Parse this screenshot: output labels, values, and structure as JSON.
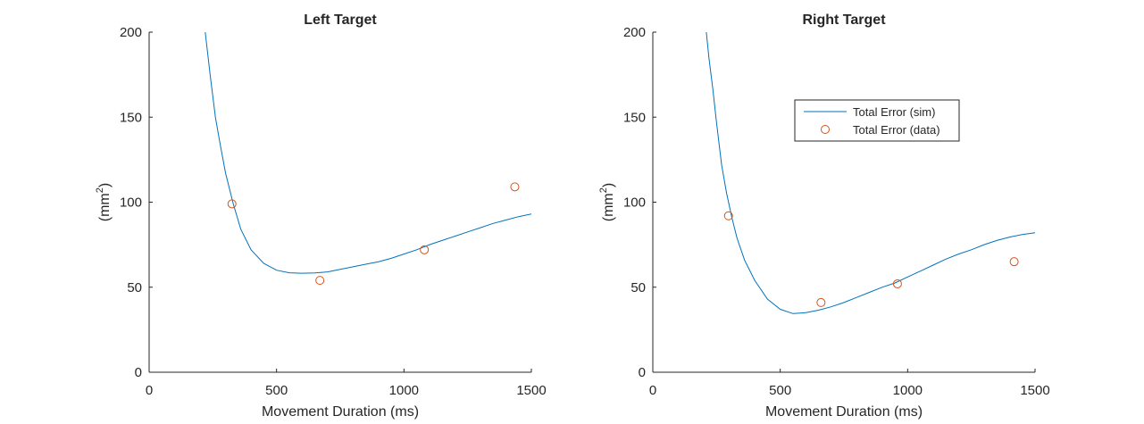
{
  "chart_data": [
    {
      "type": "line",
      "title": "Left Target",
      "xlabel": "Movement Duration (ms)",
      "ylabel": "(mm",
      "ylabel_sup": "2",
      "ylabel_close": ")",
      "xlim": [
        0,
        1500
      ],
      "ylim": [
        0,
        200
      ],
      "xticks": [
        "0",
        "500",
        "1000",
        "1500"
      ],
      "yticks": [
        "0",
        "50",
        "100",
        "150",
        "200"
      ],
      "grid": false,
      "legend": null,
      "series": [
        {
          "name": "Total Error (sim)",
          "kind": "line",
          "color": "#0072BD",
          "x": [
            220,
            240,
            260,
            280,
            300,
            330,
            360,
            400,
            450,
            500,
            550,
            600,
            650,
            700,
            750,
            800,
            850,
            900,
            950,
            1000,
            1050,
            1100,
            1150,
            1200,
            1250,
            1300,
            1350,
            1400,
            1450,
            1500
          ],
          "y": [
            200,
            174,
            150,
            133,
            117,
            99,
            84,
            72,
            64,
            60,
            58.5,
            58.2,
            58.4,
            59,
            60.5,
            62,
            63.5,
            65,
            67,
            69.5,
            72,
            75,
            77.5,
            80,
            82.5,
            85,
            87.5,
            89.5,
            91.5,
            93
          ]
        },
        {
          "name": "Total Error (data)",
          "kind": "scatter",
          "color": "#D95319",
          "x": [
            325,
            670,
            1080,
            1435
          ],
          "y": [
            99,
            54,
            72,
            109
          ]
        }
      ]
    },
    {
      "type": "line",
      "title": "Right Target",
      "xlabel": "Movement Duration (ms)",
      "ylabel": "(mm",
      "ylabel_sup": "2",
      "ylabel_close": ")",
      "xlim": [
        0,
        1500
      ],
      "ylim": [
        0,
        200
      ],
      "xticks": [
        "0",
        "500",
        "1000",
        "1500"
      ],
      "yticks": [
        "0",
        "50",
        "100",
        "150",
        "200"
      ],
      "grid": false,
      "legend": "top-right",
      "series": [
        {
          "name": "Total Error (sim)",
          "kind": "line",
          "color": "#0072BD",
          "x": [
            210,
            220,
            235,
            250,
            270,
            290,
            310,
            330,
            360,
            400,
            450,
            500,
            550,
            600,
            650,
            700,
            750,
            800,
            850,
            900,
            950,
            1000,
            1050,
            1100,
            1150,
            1200,
            1250,
            1300,
            1350,
            1400,
            1450,
            1500
          ],
          "y": [
            200,
            185,
            167,
            147,
            122,
            105,
            91,
            79,
            66,
            54,
            43,
            37,
            34.5,
            35,
            36.5,
            38.5,
            41,
            44,
            47,
            50,
            52.5,
            56,
            59.5,
            63,
            66.5,
            69.5,
            72,
            75,
            77.5,
            79.5,
            81,
            82
          ]
        },
        {
          "name": "Total Error (data)",
          "kind": "scatter",
          "color": "#D95319",
          "x": [
            297,
            660,
            960,
            1418
          ],
          "y": [
            92,
            41,
            52,
            65
          ]
        }
      ]
    }
  ]
}
